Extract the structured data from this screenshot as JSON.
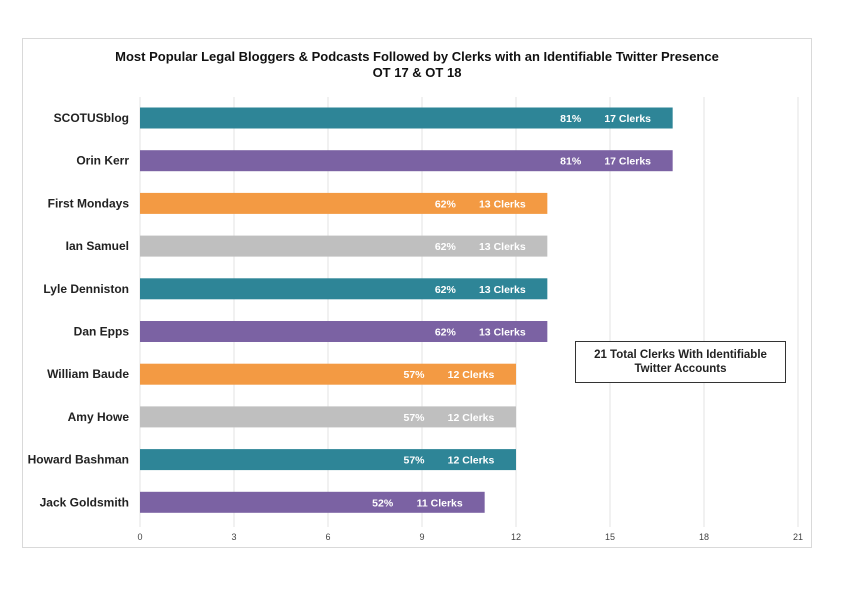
{
  "chart_data": {
    "type": "bar",
    "orientation": "horizontal",
    "title_line1": "Most Popular Legal Bloggers & Podcasts Followed by Clerks with an Identifiable Twitter Presence",
    "title_line2": "OT 17 & OT 18",
    "categories": [
      "SCOTUSblog",
      "Orin Kerr",
      "First Mondays",
      "Ian Samuel",
      "Lyle Denniston",
      "Dan Epps",
      "William Baude",
      "Amy Howe",
      "Howard Bashman",
      "Jack Goldsmith"
    ],
    "values": [
      17,
      17,
      13,
      13,
      13,
      13,
      12,
      12,
      12,
      11
    ],
    "percent_labels": [
      "81%",
      "81%",
      "62%",
      "62%",
      "62%",
      "62%",
      "57%",
      "57%",
      "57%",
      "52%"
    ],
    "count_labels": [
      "17 Clerks",
      "17 Clerks",
      "13 Clerks",
      "13 Clerks",
      "13 Clerks",
      "13 Clerks",
      "12 Clerks",
      "12 Clerks",
      "12 Clerks",
      "11 Clerks"
    ],
    "colors": [
      "#2e8597",
      "#7b62a3",
      "#f39a43",
      "#bfbfbf",
      "#2e8597",
      "#7b62a3",
      "#f39a43",
      "#bfbfbf",
      "#2e8597",
      "#7b62a3"
    ],
    "xlim": [
      0,
      21
    ],
    "xticks": [
      0,
      3,
      6,
      9,
      12,
      15,
      18,
      21
    ],
    "grid": true,
    "xlabel": "",
    "ylabel": "",
    "annotation_line1": "21 Total Clerks With Identifiable",
    "annotation_line2": "Twitter Accounts"
  }
}
